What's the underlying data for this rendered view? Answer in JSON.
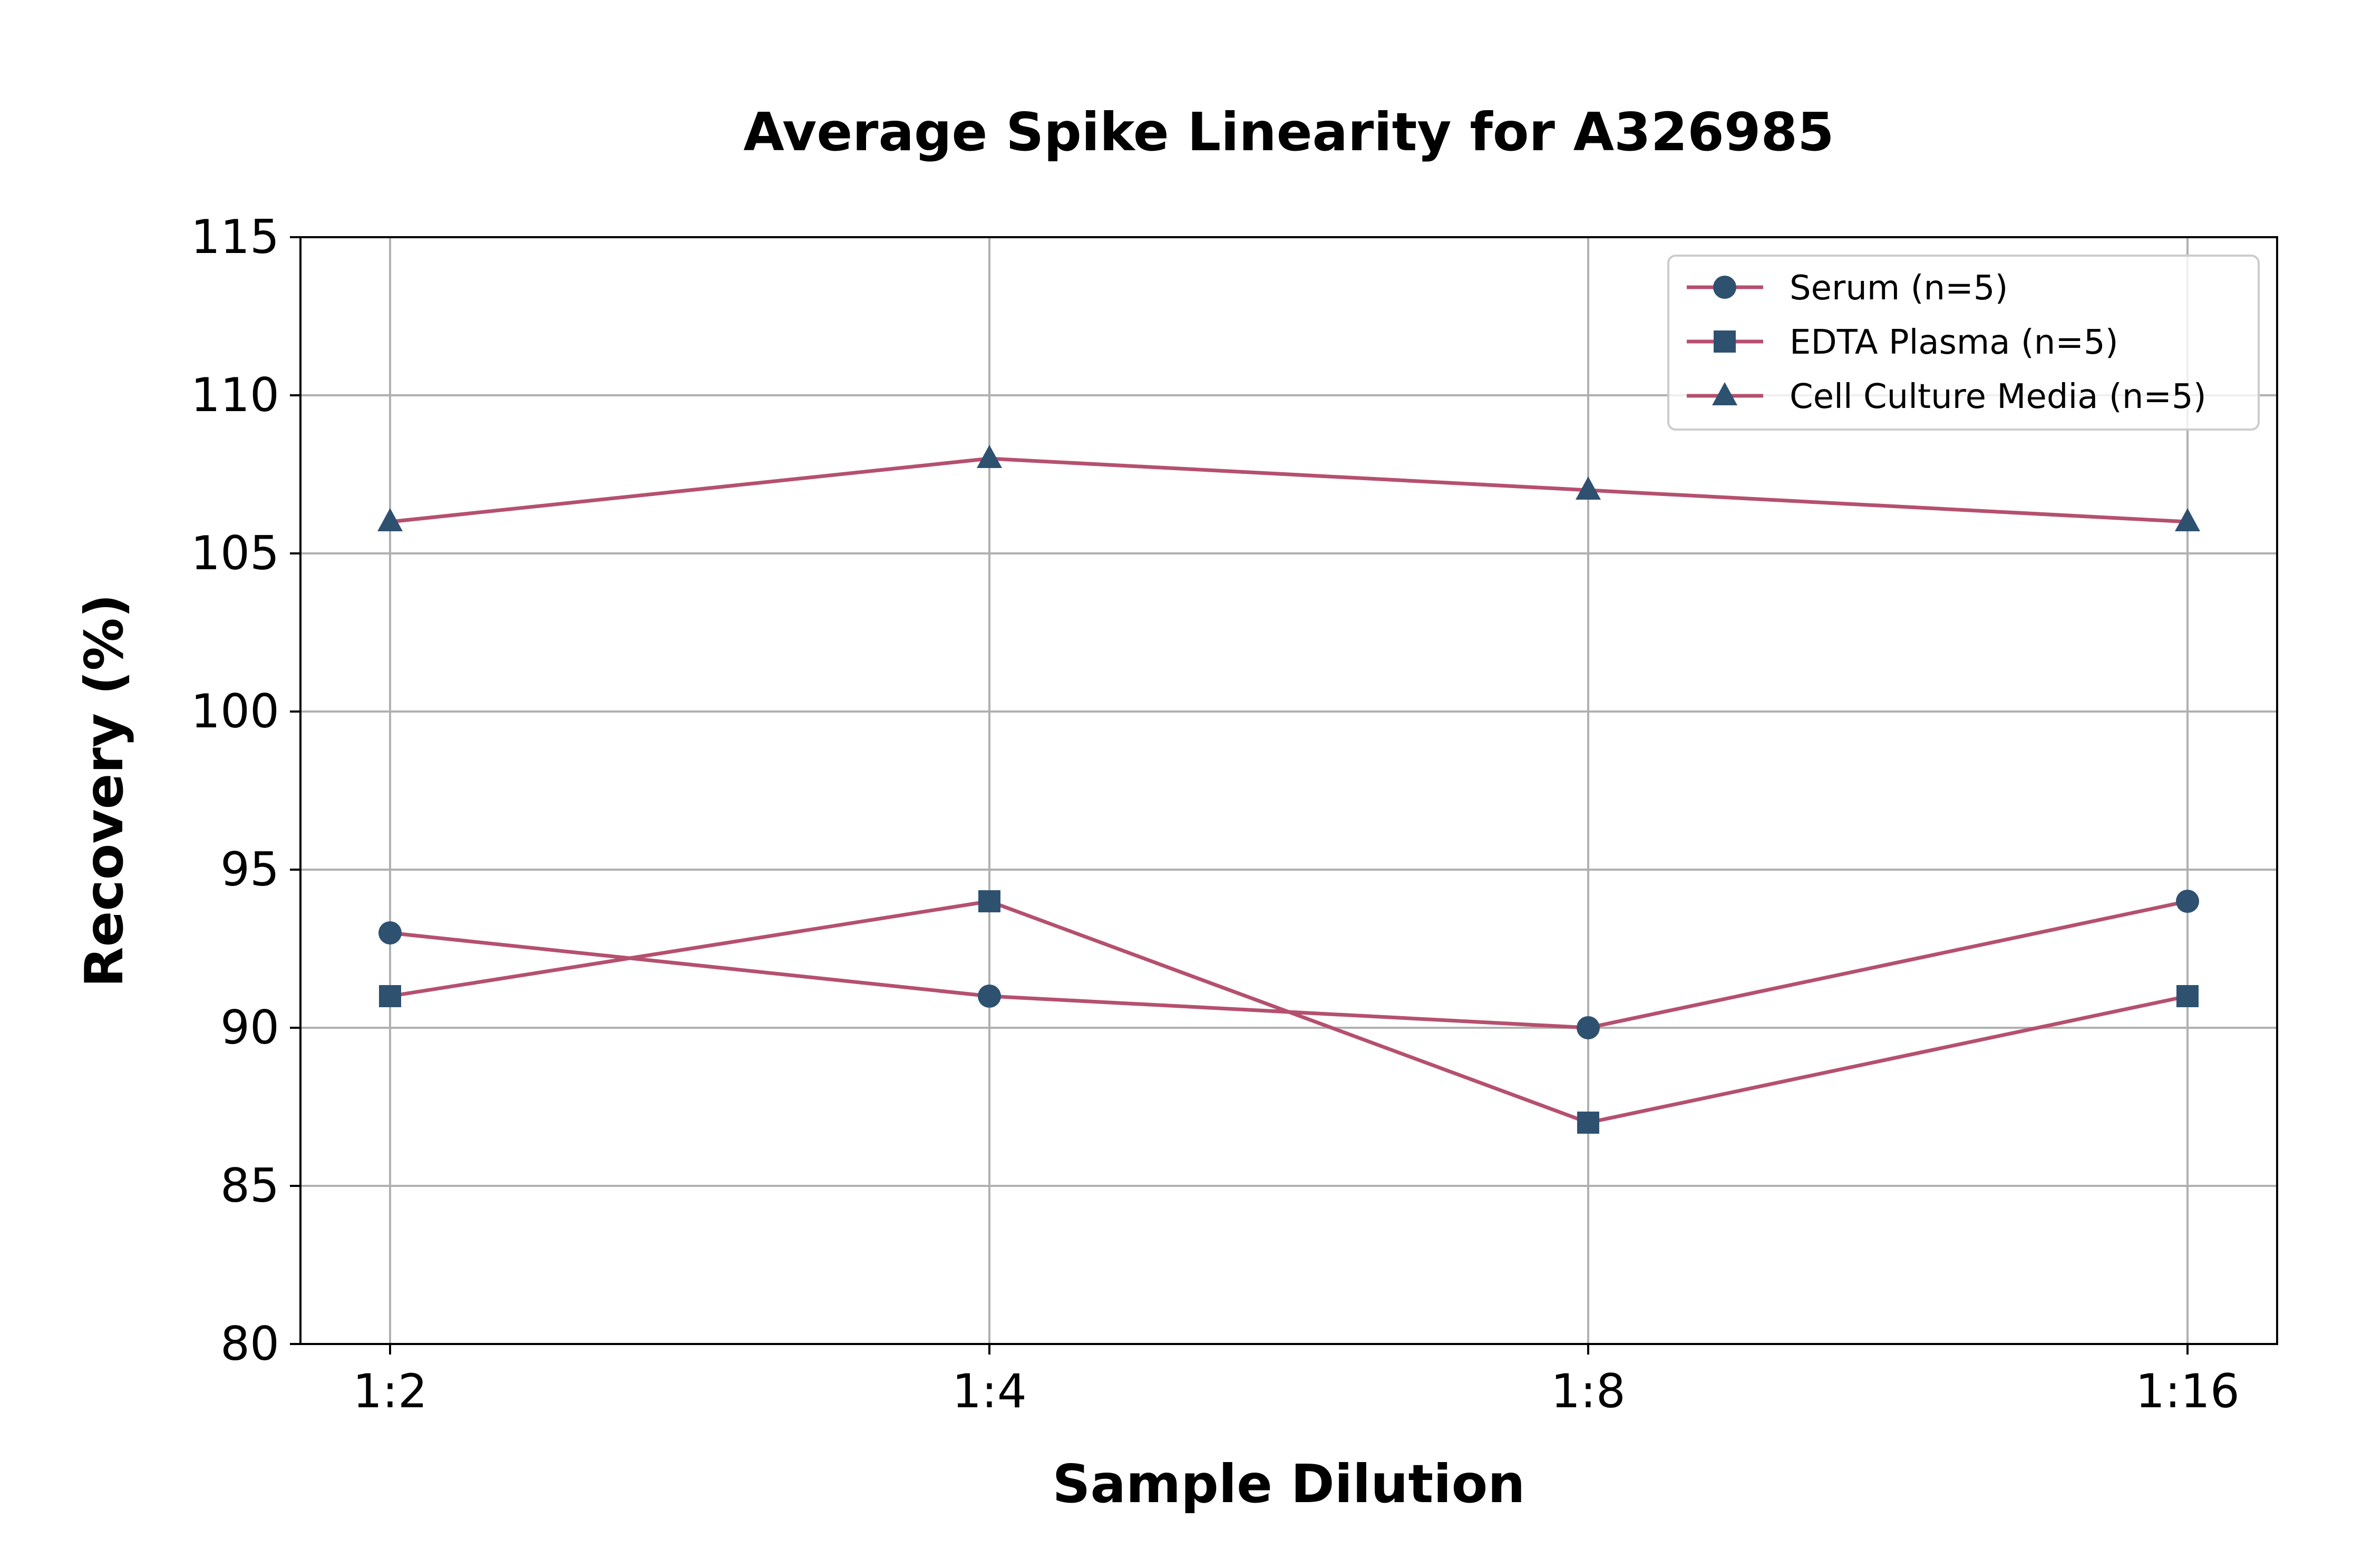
{
  "chart_data": {
    "type": "line",
    "title": "Average Spike Linearity for A326985",
    "xlabel": "Sample Dilution",
    "ylabel": "Recovery (%)",
    "categories": [
      "1:2",
      "1:4",
      "1:8",
      "1:16"
    ],
    "ylim": [
      80,
      115
    ],
    "yticks": [
      80,
      85,
      90,
      95,
      100,
      105,
      110,
      115
    ],
    "grid": true,
    "legend_position": "top-right",
    "line_color": "#b5506f",
    "marker_color": "#2e5170",
    "series": [
      {
        "name": "Serum (n=5)",
        "marker": "circle",
        "values": [
          93,
          91,
          90,
          94
        ]
      },
      {
        "name": "EDTA Plasma (n=5)",
        "marker": "square",
        "values": [
          91,
          94,
          87,
          91
        ]
      },
      {
        "name": "Cell Culture Media (n=5)",
        "marker": "triangle",
        "values": [
          106,
          108,
          107,
          106
        ]
      }
    ]
  }
}
